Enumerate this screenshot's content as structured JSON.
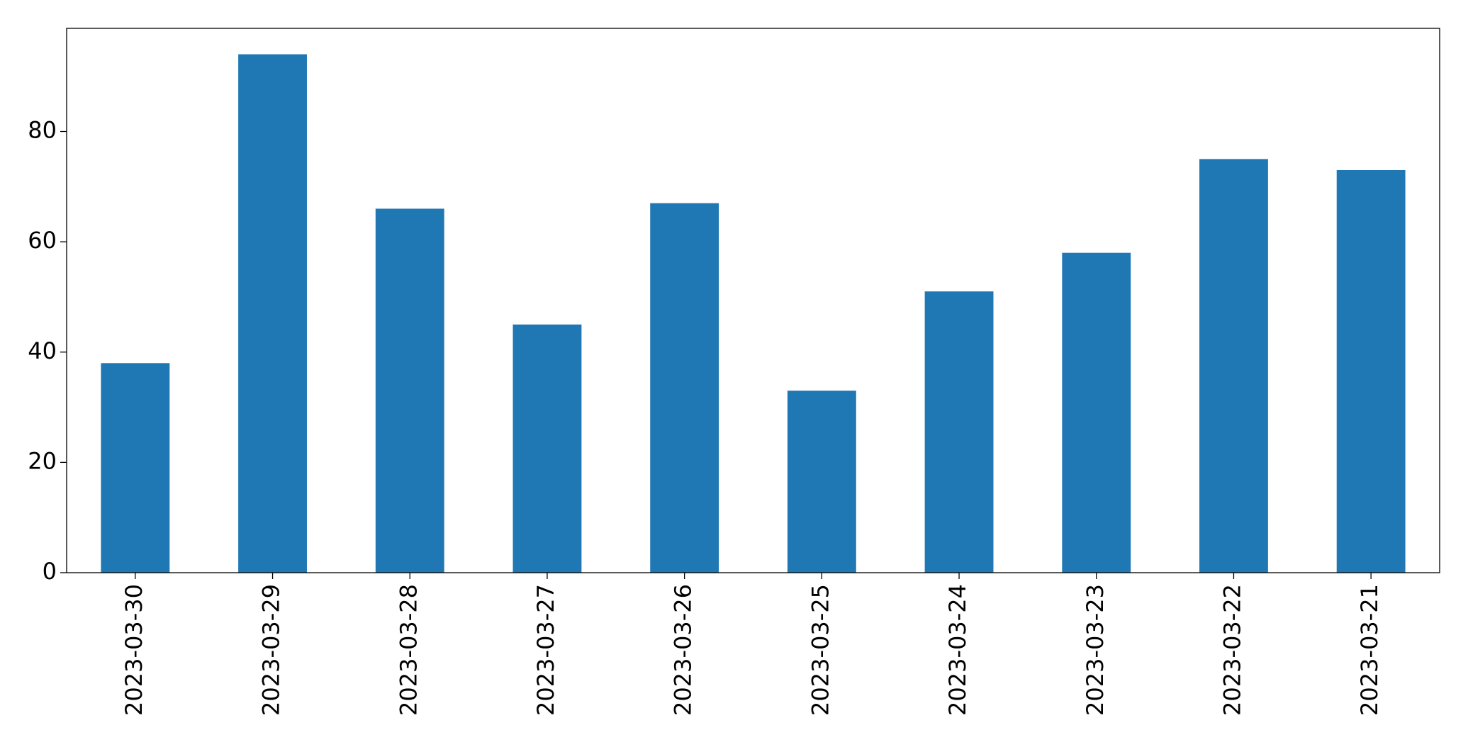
{
  "chart_data": {
    "type": "bar",
    "categories": [
      "2023-03-30",
      "2023-03-29",
      "2023-03-28",
      "2023-03-27",
      "2023-03-26",
      "2023-03-25",
      "2023-03-24",
      "2023-03-23",
      "2023-03-22",
      "2023-03-21"
    ],
    "values": [
      38,
      94,
      66,
      45,
      67,
      33,
      51,
      58,
      75,
      73
    ],
    "color": "#1f77b4",
    "ylim": [
      0,
      98.7
    ],
    "yticks": [
      0,
      20,
      40,
      60,
      80
    ],
    "grid": false
  }
}
